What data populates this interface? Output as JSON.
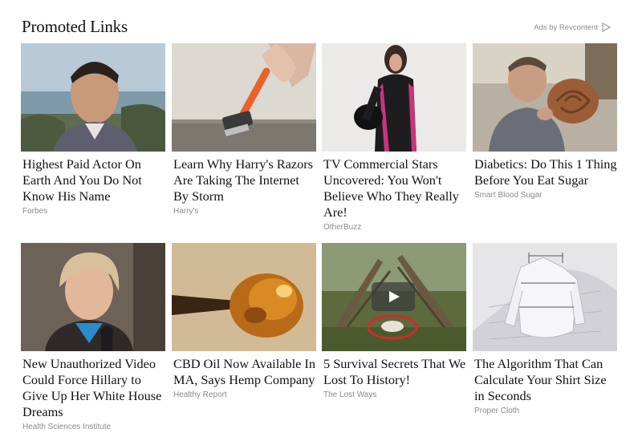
{
  "header": {
    "title": "Promoted Links",
    "ads_by": "Ads by Revcontent",
    "ads_icon": "play-triangle-icon"
  },
  "cards": [
    {
      "headline": "Highest Paid Actor On Earth And You Do Not Know His Name",
      "source": "Forbes",
      "image": "man-portrait-harbor"
    },
    {
      "headline": "Learn Why Harry's Razors Are Taking The Internet By Storm",
      "source": "Harry's",
      "image": "hand-holding-razor"
    },
    {
      "headline": "TV Commercial Stars Uncovered: You Won't Believe Who They Really Are!",
      "source": "OtherBuzz",
      "image": "woman-motorcycle-suit"
    },
    {
      "headline": "Diabetics: Do This 1 Thing Before You Eat Sugar",
      "source": "Smart Blood Sugar",
      "image": "man-eating-cinnamon-roll"
    },
    {
      "headline": "New Unauthorized Video Could Force Hillary to Give Up Her White House Dreams",
      "source": "Health Sciences Institute",
      "image": "woman-at-microphone"
    },
    {
      "headline": "CBD Oil Now Available In MA, Says Hemp Company",
      "source": "Healthy Report",
      "image": "amber-oil-on-stick"
    },
    {
      "headline": "5 Survival Secrets That We Lost To History!",
      "source": "The Lost Ways",
      "image": "campfire-shelter-video"
    },
    {
      "headline": "The Algorithm That Can Calculate Your Shirt Size in Seconds",
      "source": "Proper Cloth",
      "image": "shirt-measurement-3d"
    }
  ]
}
